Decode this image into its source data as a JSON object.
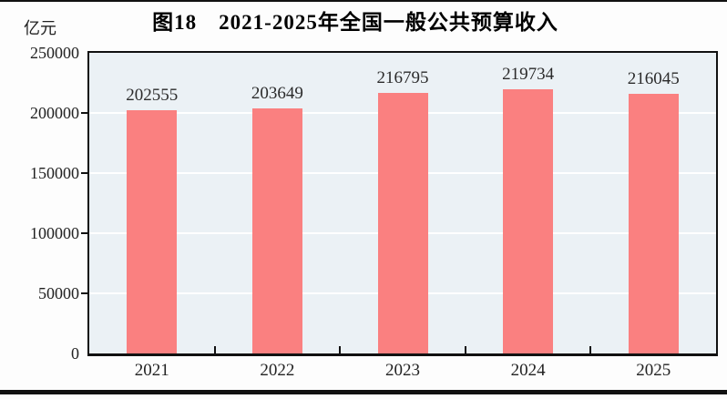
{
  "figure": {
    "title": "图18　2021-2025年全国一般公共预算收入",
    "unit_label": "亿元"
  },
  "chart_data": {
    "type": "bar",
    "title": "图18　2021-2025年全国一般公共预算收入",
    "ylabel": "亿元",
    "xlabel": "",
    "categories": [
      "2021",
      "2022",
      "2023",
      "2024",
      "2025"
    ],
    "values": [
      202555,
      203649,
      216795,
      219734,
      216045
    ],
    "value_labels": [
      "202555",
      "203649",
      "216795",
      "219734",
      "216045"
    ],
    "ylim": [
      0,
      250000
    ],
    "ytick_step": 50000,
    "yticks": [
      0,
      50000,
      100000,
      150000,
      200000,
      250000
    ],
    "ytick_labels": [
      "0",
      "50000",
      "100000",
      "150000",
      "200000",
      "250000"
    ],
    "grid": true,
    "legend_position": "none",
    "bar_color": "#fa8080",
    "plot_background": "#ebf1f5",
    "grid_color": "#ffffff",
    "axis_color": "#111111"
  }
}
